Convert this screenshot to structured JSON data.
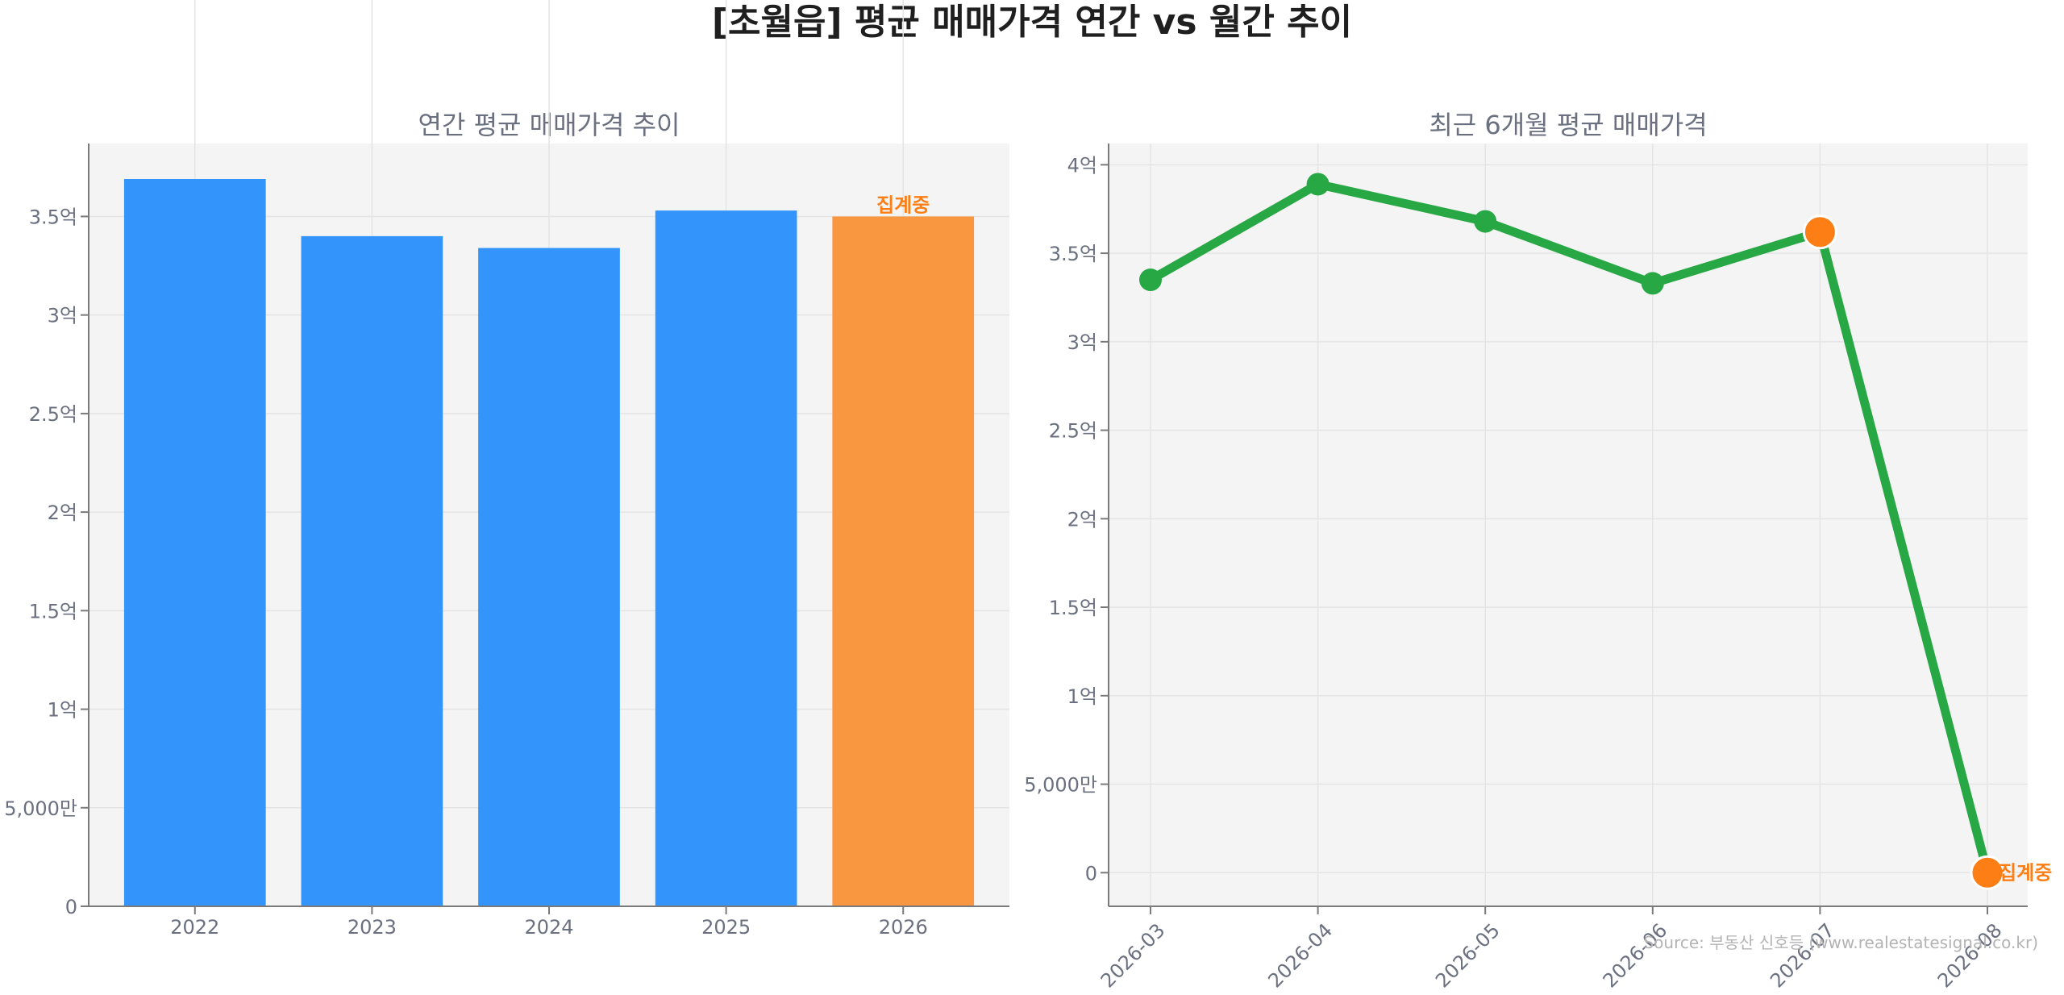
{
  "title": "[초월읍] 평균 매매가격 연간 vs 월간 추이",
  "source": "Source: 부동산 신호등 (www.realestatesignal.co.kr)",
  "colors": {
    "bar": "#3394fb",
    "bar_highlight": "#f99740",
    "line": "#28a745",
    "marker_highlight": "#fd7e14",
    "annotation": "#fd7e14",
    "panel_bg": "#f4f4f4"
  },
  "chart_data": [
    {
      "type": "bar",
      "title": "연간 평균 매매가격 추이",
      "categories": [
        "2022",
        "2023",
        "2024",
        "2025",
        "2026"
      ],
      "values": [
        36900,
        34000,
        33400,
        35300,
        35000
      ],
      "highlight_index": 4,
      "annotation": {
        "index": 4,
        "text": "집계중"
      },
      "ylim": [
        0,
        38700
      ],
      "yticks": [
        0,
        5000,
        10000,
        15000,
        20000,
        25000,
        30000,
        35000
      ],
      "ytick_labels": [
        "0",
        "5,000만",
        "1억",
        "1.5억",
        "2억",
        "2.5억",
        "3억",
        "3.5억"
      ],
      "grid": true,
      "xlabel": "",
      "ylabel": ""
    },
    {
      "type": "line",
      "title": "최근 6개월 평균 매매가격",
      "x": [
        "2026-03",
        "2026-04",
        "2026-05",
        "2026-06",
        "2026-07",
        "2026-08"
      ],
      "values": [
        33500,
        38900,
        36800,
        33300,
        36200,
        0
      ],
      "highlight_indices": [
        4,
        5
      ],
      "annotation": {
        "index": 5,
        "text": "집계중"
      },
      "ylim": [
        -1900,
        41200
      ],
      "yticks": [
        0,
        5000,
        10000,
        15000,
        20000,
        25000,
        30000,
        35000,
        40000
      ],
      "ytick_labels": [
        "0",
        "5,000만",
        "1억",
        "1.5억",
        "2억",
        "2.5억",
        "3억",
        "3.5억",
        "4억"
      ],
      "grid": true,
      "xlabel": "",
      "ylabel": ""
    }
  ]
}
